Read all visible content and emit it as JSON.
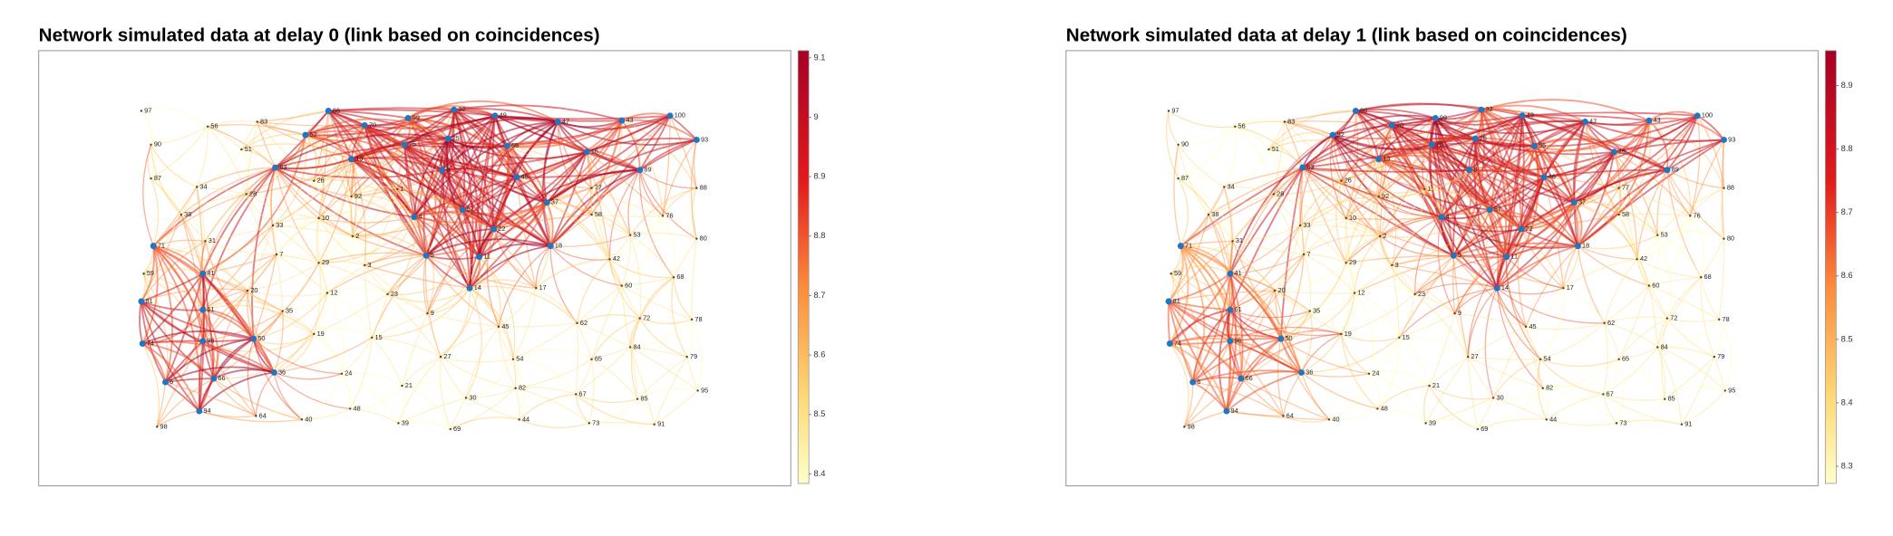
{
  "panels": [
    {
      "title": "Network simulated data at delay 0 (link based on coincidences)",
      "colorbar": {
        "lim": [
          8.384,
          9.112
        ],
        "ticks": [
          8.4,
          8.5,
          8.6,
          8.7,
          8.8,
          8.9,
          9,
          9.1
        ]
      },
      "nodes": [
        97,
        56,
        83,
        90,
        51,
        86,
        70,
        99,
        32,
        49,
        47,
        43,
        100,
        93,
        52,
        13,
        75,
        25,
        55,
        16,
        63,
        26,
        8,
        46,
        89,
        87,
        34,
        28,
        92,
        1,
        77,
        88,
        37,
        38,
        10,
        4,
        57,
        58,
        22,
        76,
        33,
        31,
        2,
        53,
        80,
        18,
        71,
        7,
        5,
        11,
        29,
        3,
        42,
        59,
        41,
        20,
        14,
        17,
        60,
        68,
        12,
        23,
        81,
        61,
        35,
        9,
        72,
        78,
        62,
        45,
        19,
        15,
        96,
        50,
        74,
        84,
        27,
        54,
        65,
        79,
        36,
        24,
        6,
        66,
        21,
        82,
        30,
        67,
        85,
        95,
        94,
        64,
        48,
        40,
        44,
        39,
        73,
        91,
        98,
        69
      ]
    },
    {
      "title": "Network simulated data at delay 1 (link based on coincidences)",
      "colorbar": {
        "lim": [
          8.273,
          8.955
        ],
        "ticks": [
          8.3,
          8.4,
          8.5,
          8.6,
          8.7,
          8.8,
          8.9
        ]
      },
      "nodes": [
        97,
        56,
        83,
        90,
        51,
        86,
        70,
        99,
        32,
        49,
        47,
        43,
        100,
        93,
        52,
        13,
        75,
        25,
        55,
        16,
        63,
        26,
        8,
        46,
        89,
        87,
        34,
        28,
        92,
        1,
        77,
        88,
        37,
        38,
        10,
        4,
        57,
        58,
        22,
        76,
        33,
        31,
        2,
        53,
        80,
        18,
        71,
        7,
        5,
        11,
        29,
        3,
        42,
        59,
        41,
        20,
        14,
        17,
        60,
        68,
        12,
        23,
        81,
        61,
        35,
        9,
        72,
        78,
        62,
        45,
        19,
        15,
        96,
        50,
        74,
        84,
        27,
        54,
        65,
        79,
        36,
        24,
        6,
        66,
        21,
        82,
        30,
        67,
        85,
        95,
        94,
        64,
        48,
        40,
        44,
        39,
        73,
        91,
        98,
        69
      ]
    }
  ]
}
